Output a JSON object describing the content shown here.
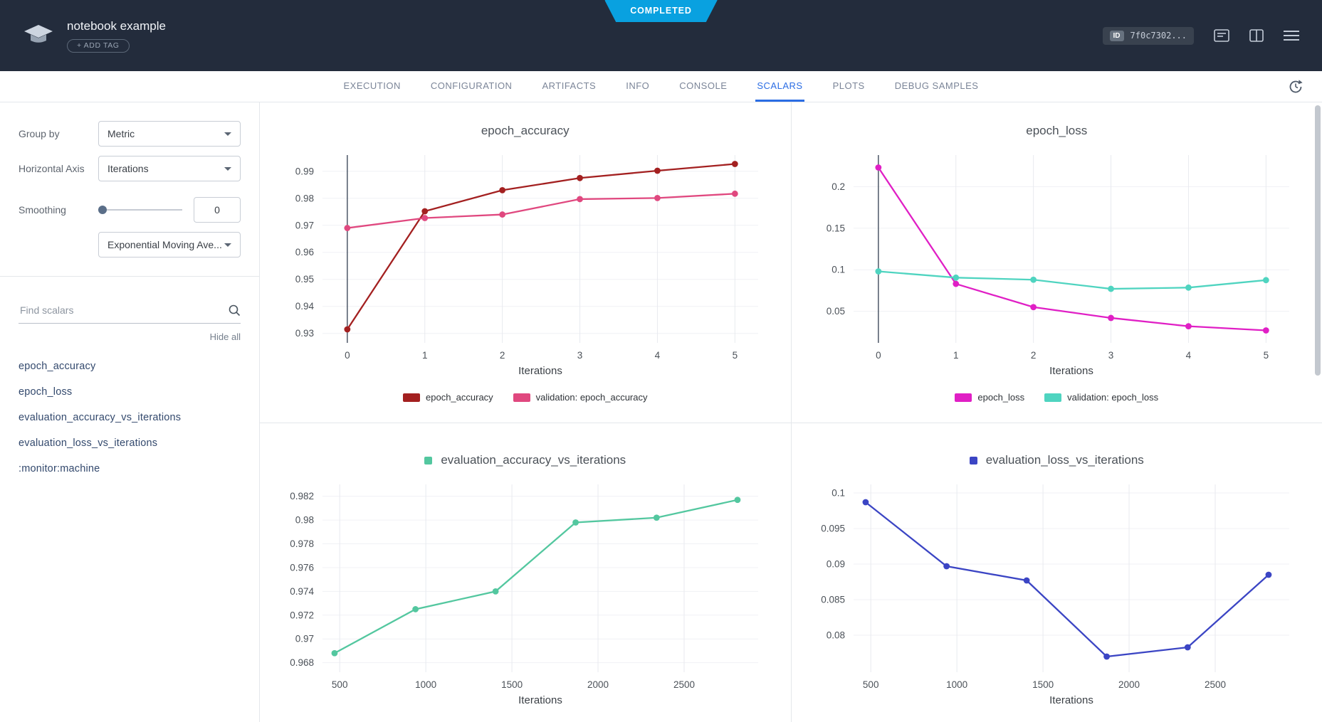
{
  "header": {
    "status": "COMPLETED",
    "title": "notebook example",
    "add_tag": "+ ADD TAG",
    "id_badge": {
      "label": "ID",
      "value": "7f0c7302..."
    }
  },
  "tabs": [
    {
      "label": "EXECUTION"
    },
    {
      "label": "CONFIGURATION"
    },
    {
      "label": "ARTIFACTS"
    },
    {
      "label": "INFO"
    },
    {
      "label": "CONSOLE"
    },
    {
      "label": "SCALARS",
      "active": true
    },
    {
      "label": "PLOTS"
    },
    {
      "label": "DEBUG SAMPLES"
    }
  ],
  "sidebar": {
    "group_by": {
      "label": "Group by",
      "value": "Metric"
    },
    "horizontal_axis": {
      "label": "Horizontal Axis",
      "value": "Iterations"
    },
    "smoothing": {
      "label": "Smoothing",
      "value": "0",
      "type": "Exponential Moving Ave..."
    },
    "search": {
      "placeholder": "Find scalars"
    },
    "hide_all": "Hide all",
    "metrics": [
      "epoch_accuracy",
      "epoch_loss",
      "evaluation_accuracy_vs_iterations",
      "evaluation_loss_vs_iterations",
      ":monitor:machine"
    ]
  },
  "chart_data": [
    {
      "type": "line",
      "title": "epoch_accuracy",
      "xlabel": "Iterations",
      "xlim": [
        -0.32,
        5.3
      ],
      "ylim": [
        0.9265,
        0.996
      ],
      "xticks": [
        0,
        1,
        2,
        3,
        4,
        5
      ],
      "xtick_labels": [
        "0",
        "1",
        "2",
        "3",
        "4",
        "5"
      ],
      "yticks": [
        0.93,
        0.94,
        0.95,
        0.96,
        0.97,
        0.98,
        0.99
      ],
      "ytick_labels": [
        "0.93",
        "0.94",
        "0.95",
        "0.96",
        "0.97",
        "0.98",
        "0.99"
      ],
      "zeroline_x": 0,
      "legend": "bottom",
      "series": [
        {
          "name": "epoch_accuracy",
          "color": "#a32020",
          "x": [
            0,
            1,
            2,
            3,
            4,
            5
          ],
          "values": [
            0.9315,
            0.9752,
            0.983,
            0.9875,
            0.9902,
            0.9927
          ]
        },
        {
          "name": "validation: epoch_accuracy",
          "color": "#e0487f",
          "x": [
            0,
            1,
            2,
            3,
            4,
            5
          ],
          "values": [
            0.969,
            0.9727,
            0.974,
            0.9797,
            0.9801,
            0.9817
          ]
        }
      ]
    },
    {
      "type": "line",
      "title": "epoch_loss",
      "xlabel": "Iterations",
      "xlim": [
        -0.32,
        5.3
      ],
      "ylim": [
        0.012,
        0.238
      ],
      "xticks": [
        0,
        1,
        2,
        3,
        4,
        5
      ],
      "xtick_labels": [
        "0",
        "1",
        "2",
        "3",
        "4",
        "5"
      ],
      "yticks": [
        0.05,
        0.1,
        0.15,
        0.2
      ],
      "ytick_labels": [
        "0.05",
        "0.1",
        "0.15",
        "0.2"
      ],
      "zeroline_x": 0,
      "legend": "bottom",
      "series": [
        {
          "name": "epoch_loss",
          "color": "#e01fc5",
          "x": [
            0,
            1,
            2,
            3,
            4,
            5
          ],
          "values": [
            0.223,
            0.083,
            0.055,
            0.042,
            0.032,
            0.027
          ]
        },
        {
          "name": "validation: epoch_loss",
          "color": "#4fd4c0",
          "x": [
            0,
            1,
            2,
            3,
            4,
            5
          ],
          "values": [
            0.098,
            0.0905,
            0.088,
            0.077,
            0.0785,
            0.0875
          ]
        }
      ]
    },
    {
      "type": "line",
      "title": "evaluation_accuracy_vs_iterations",
      "xlabel": "Iterations",
      "xlim": [
        400,
        2930
      ],
      "ylim": [
        0.9672,
        0.983
      ],
      "xticks": [
        500,
        1000,
        1500,
        2000,
        2500
      ],
      "xtick_labels": [
        "500",
        "1000",
        "1500",
        "2000",
        "2500"
      ],
      "yticks": [
        0.968,
        0.97,
        0.972,
        0.974,
        0.976,
        0.978,
        0.98,
        0.982
      ],
      "ytick_labels": [
        "0.968",
        "0.97",
        "0.972",
        "0.974",
        "0.976",
        "0.978",
        "0.98",
        "0.982"
      ],
      "zeroline_x": null,
      "legend": "title",
      "series": [
        {
          "name": "evaluation_accuracy_vs_iterations",
          "color": "#53c79f",
          "x": [
            470,
            940,
            1405,
            1870,
            2340,
            2810
          ],
          "values": [
            0.9688,
            0.9725,
            0.974,
            0.9798,
            0.9802,
            0.9817
          ]
        }
      ]
    },
    {
      "type": "line",
      "title": "evaluation_loss_vs_iterations",
      "xlabel": "Iterations",
      "xlim": [
        400,
        2930
      ],
      "ylim": [
        0.0748,
        0.1012
      ],
      "xticks": [
        500,
        1000,
        1500,
        2000,
        2500
      ],
      "xtick_labels": [
        "500",
        "1000",
        "1500",
        "2000",
        "2500"
      ],
      "yticks": [
        0.08,
        0.085,
        0.09,
        0.095,
        0.1
      ],
      "ytick_labels": [
        "0.08",
        "0.085",
        "0.09",
        "0.095",
        "0.1"
      ],
      "zeroline_x": null,
      "legend": "title",
      "series": [
        {
          "name": "evaluation_loss_vs_iterations",
          "color": "#3b45c4",
          "x": [
            470,
            940,
            1405,
            1870,
            2340,
            2810
          ],
          "values": [
            0.0987,
            0.0897,
            0.0877,
            0.077,
            0.0783,
            0.0885
          ]
        }
      ]
    }
  ]
}
